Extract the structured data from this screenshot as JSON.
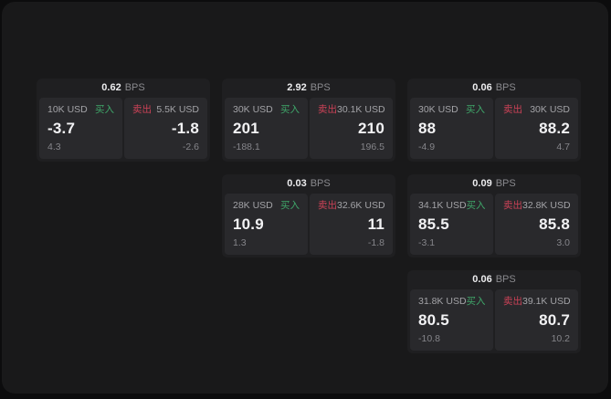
{
  "labels": {
    "bps_suffix": "BPS",
    "buy": "买入",
    "sell": "卖出"
  },
  "colors": {
    "buy_green": "#3fa76a",
    "sell_red": "#cc4257",
    "panel_bg": "#19191a",
    "card_bg": "#1f1f21",
    "subpanel_bg": "#29292c"
  },
  "cards": [
    {
      "bps": "0.62",
      "col": 1,
      "row": 1,
      "buy": {
        "amount": "10K USD",
        "value": "-3.7",
        "change": "4.3"
      },
      "sell": {
        "amount": "5.5K USD",
        "value": "-1.8",
        "change": "-2.6"
      }
    },
    {
      "bps": "2.92",
      "col": 2,
      "row": 1,
      "buy": {
        "amount": "30K USD",
        "value": "201",
        "change": "-188.1"
      },
      "sell": {
        "amount": "30.1K USD",
        "value": "210",
        "change": "196.5"
      }
    },
    {
      "bps": "0.06",
      "col": 3,
      "row": 1,
      "buy": {
        "amount": "30K USD",
        "value": "88",
        "change": "-4.9"
      },
      "sell": {
        "amount": "30K USD",
        "value": "88.2",
        "change": "4.7"
      }
    },
    {
      "bps": "0.03",
      "col": 2,
      "row": 2,
      "buy": {
        "amount": "28K USD",
        "value": "10.9",
        "change": "1.3"
      },
      "sell": {
        "amount": "32.6K USD",
        "value": "11",
        "change": "-1.8"
      }
    },
    {
      "bps": "0.09",
      "col": 3,
      "row": 2,
      "buy": {
        "amount": "34.1K USD",
        "value": "85.5",
        "change": "-3.1"
      },
      "sell": {
        "amount": "32.8K USD",
        "value": "85.8",
        "change": "3.0"
      }
    },
    {
      "bps": "0.06",
      "col": 3,
      "row": 3,
      "buy": {
        "amount": "31.8K USD",
        "value": "80.5",
        "change": "-10.8"
      },
      "sell": {
        "amount": "39.1K USD",
        "value": "80.7",
        "change": "10.2"
      }
    }
  ]
}
